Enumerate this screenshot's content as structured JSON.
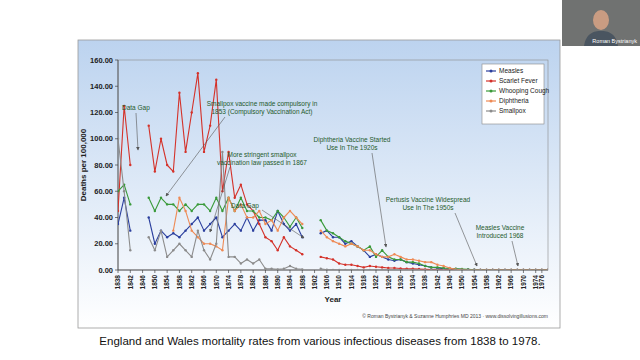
{
  "chart_data": {
    "type": "line",
    "x_label": "Year",
    "y_label": "Deaths per 100,000",
    "credit": "© Roman Bystrianyk & Suzanne Humphries MD 2013 · www.dissolvingillusions.com",
    "x": [
      1838,
      1840,
      1842,
      1844,
      1846,
      1848,
      1850,
      1852,
      1854,
      1856,
      1858,
      1860,
      1862,
      1864,
      1866,
      1868,
      1870,
      1872,
      1874,
      1876,
      1878,
      1880,
      1882,
      1884,
      1886,
      1888,
      1890,
      1892,
      1894,
      1896,
      1898,
      1900,
      1902,
      1904,
      1906,
      1908,
      1910,
      1912,
      1914,
      1916,
      1918,
      1920,
      1922,
      1924,
      1926,
      1928,
      1930,
      1932,
      1934,
      1936,
      1938,
      1940,
      1942,
      1944,
      1946,
      1948,
      1950,
      1952,
      1954,
      1956,
      1958,
      1960,
      1962,
      1964,
      1966,
      1968,
      1970,
      1972,
      1974,
      1976,
      1978
    ],
    "xlim": [
      1838,
      1978
    ],
    "xticks": [
      1838,
      1842,
      1846,
      1850,
      1854,
      1858,
      1862,
      1866,
      1870,
      1874,
      1878,
      1882,
      1886,
      1890,
      1894,
      1898,
      1902,
      1906,
      1910,
      1914,
      1918,
      1922,
      1926,
      1930,
      1934,
      1938,
      1942,
      1946,
      1950,
      1954,
      1958,
      1962,
      1966,
      1970,
      1974,
      1976
    ],
    "ylim": [
      0,
      160
    ],
    "yticks": [
      {
        "value": 0,
        "label": "0.00"
      },
      {
        "value": 20,
        "label": "20.00"
      },
      {
        "value": 40,
        "label": "40.00"
      },
      {
        "value": 60,
        "label": "60.00"
      },
      {
        "value": 80,
        "label": "80.00"
      },
      {
        "value": 100,
        "label": "100.00"
      },
      {
        "value": 120,
        "label": "120.00"
      },
      {
        "value": 140,
        "label": "140.00"
      },
      {
        "value": 160,
        "label": "160.00"
      }
    ],
    "grid": false,
    "legend": "top-right",
    "marker": "circle",
    "line_style": "solid",
    "series": [
      {
        "name": "Measles",
        "color": "#2b3f9e",
        "values": [
          35,
          55,
          30,
          null,
          null,
          40,
          20,
          30,
          25,
          28,
          25,
          30,
          35,
          40,
          30,
          35,
          40,
          25,
          30,
          35,
          30,
          40,
          30,
          38,
          38,
          30,
          45,
          35,
          30,
          35,
          25,
          null,
          null,
          28,
          30,
          25,
          25,
          20,
          22,
          18,
          15,
          10,
          12,
          10,
          8,
          7,
          8,
          6,
          5,
          4,
          3,
          2,
          1.5,
          1,
          0.8,
          0.8,
          0.5,
          0.4,
          0.2,
          0.1,
          0.1,
          0.1,
          0.05,
          0,
          0,
          0,
          0,
          0,
          0,
          0,
          0
        ]
      },
      {
        "name": "Scarlet Fever",
        "color": "#d4322a",
        "values": [
          45,
          125,
          80,
          null,
          null,
          110,
          75,
          100,
          80,
          75,
          135,
          90,
          120,
          150,
          90,
          110,
          145,
          60,
          90,
          55,
          65,
          50,
          45,
          35,
          25,
          22,
          15,
          25,
          18,
          15,
          12,
          null,
          null,
          10,
          9,
          8,
          5,
          4,
          4,
          3,
          2,
          3,
          2.5,
          2,
          1.5,
          1.5,
          1.2,
          1,
          1,
          0.8,
          0.5,
          0.3,
          0.2,
          0.2,
          0.1,
          0.1,
          0.05,
          0,
          0,
          0,
          0,
          0,
          0,
          0,
          0,
          0,
          0,
          0,
          0,
          0,
          0
        ]
      },
      {
        "name": "Whooping Cough",
        "color": "#3a9a3a",
        "values": [
          60,
          65,
          50,
          null,
          null,
          55,
          45,
          55,
          50,
          50,
          45,
          50,
          45,
          50,
          50,
          45,
          55,
          45,
          55,
          45,
          55,
          45,
          45,
          40,
          40,
          38,
          45,
          40,
          33,
          40,
          32,
          null,
          null,
          38,
          30,
          28,
          25,
          22,
          20,
          18,
          15,
          18,
          10,
          15,
          10,
          8,
          8,
          6,
          6,
          5,
          3,
          2,
          2,
          1.5,
          1.2,
          1,
          0.8,
          0.5,
          0.2,
          0.1,
          0.05,
          0,
          0,
          0,
          0,
          0,
          0,
          0,
          0,
          0,
          0
        ]
      },
      {
        "name": "Diphtheria",
        "color": "#ee8a55",
        "values": [
          null,
          null,
          null,
          null,
          null,
          null,
          null,
          null,
          null,
          30,
          55,
          45,
          30,
          25,
          20,
          20,
          18,
          15,
          55,
          45,
          50,
          40,
          40,
          45,
          35,
          38,
          30,
          40,
          45,
          40,
          35,
          null,
          null,
          30,
          25,
          22,
          20,
          18,
          20,
          18,
          15,
          15,
          12,
          10,
          10,
          12,
          10,
          8,
          8,
          7,
          6,
          6,
          4,
          3,
          1.5,
          0.5,
          0.2,
          0.05,
          0,
          0,
          0,
          0,
          0,
          0,
          0,
          0,
          0,
          0,
          0,
          0,
          0
        ]
      },
      {
        "name": "Smallpox",
        "color": "#8c8c8c",
        "values": [
          100,
          60,
          15,
          null,
          null,
          25,
          15,
          30,
          10,
          15,
          20,
          15,
          10,
          30,
          15,
          8,
          20,
          90,
          10,
          10,
          5,
          8,
          5,
          8,
          1,
          1,
          0.5,
          1,
          3,
          1,
          0.5,
          null,
          null,
          1,
          0.2,
          0.1,
          0,
          0,
          0,
          0,
          0,
          0,
          0,
          0,
          0,
          0,
          0,
          0,
          0,
          0,
          0,
          0,
          0,
          0,
          0,
          0,
          0,
          0,
          0,
          0,
          0,
          0,
          0,
          0,
          0,
          0,
          0,
          0,
          0,
          0,
          0
        ]
      }
    ],
    "annotations": [
      {
        "text": [
          "Data Gap"
        ]
      },
      {
        "text": [
          "Smallpox vaccine made compulsory in",
          "1853 (Compulsory Vaccination Act)"
        ]
      },
      {
        "text": [
          "More stringent smallpox",
          "vaccination law passed in 1867"
        ]
      },
      {
        "text": [
          "Data Gap"
        ]
      },
      {
        "text": [
          "Diphtheria Vaccine Started",
          "Use In The 1920s"
        ]
      },
      {
        "text": [
          "Pertusis Vaccine Widespread",
          "Use In The 1950s"
        ]
      },
      {
        "text": [
          "Measles Vaccine",
          "Introduced 1968"
        ]
      }
    ]
  },
  "caption": "England and Wales mortality rates from various infectious diseases from 1838 to 1978.",
  "presenter": "Roman Bystrianyk"
}
